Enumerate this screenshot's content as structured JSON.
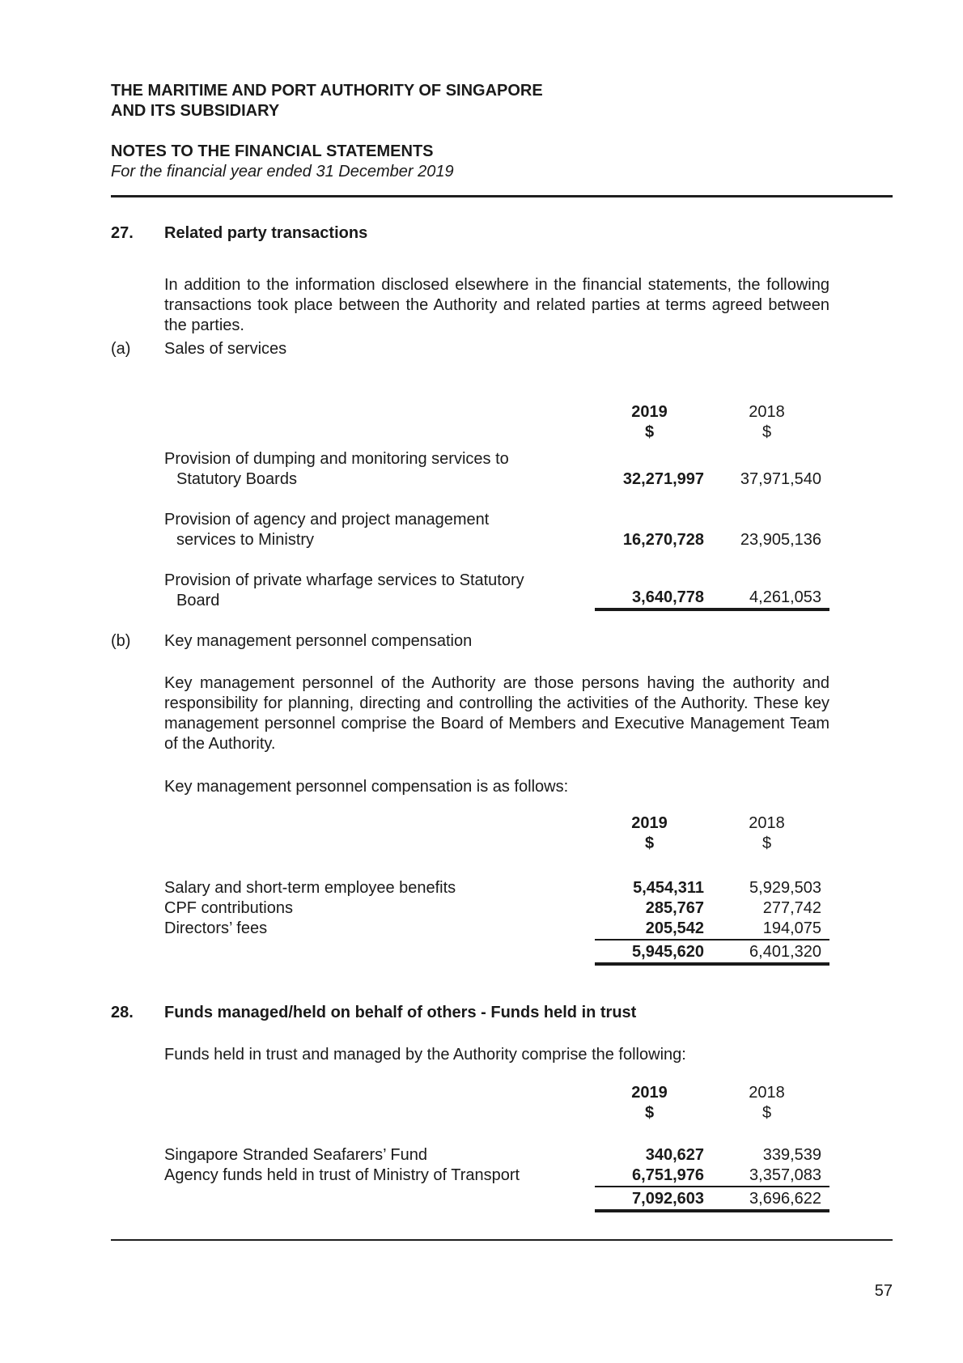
{
  "header": {
    "org_line1": "THE MARITIME AND PORT AUTHORITY OF SINGAPORE",
    "org_line2": "AND ITS SUBSIDIARY",
    "doc_title": "NOTES TO THE FINANCIAL STATEMENTS",
    "doc_period": "For the financial year ended 31 December 2019"
  },
  "sections": {
    "s27": {
      "number": "27.",
      "title": "Related party transactions",
      "intro_lines": [
        "In addition to the information disclosed elsewhere in the financial statements, the following",
        "transactions took place between the Authority and related parties at terms agreed between",
        "the parties."
      ],
      "a": {
        "label": "(a)",
        "title": "Sales of services",
        "table": {
          "year_2019": "2019",
          "year_2018": "2018",
          "unit_2019": "$",
          "unit_2018": "$",
          "rows": [
            {
              "label1": "Provision of dumping and monitoring services to",
              "label2": "Statutory Boards",
              "v2019": "32,271,997",
              "v2018": "37,971,540"
            },
            {
              "label1": "Provision of agency and project management",
              "label2": "services to Ministry",
              "v2019": "16,270,728",
              "v2018": "23,905,136"
            },
            {
              "label1": "Provision of private wharfage services to Statutory",
              "label2": "Board",
              "v2019": "3,640,778",
              "v2018": "4,261,053"
            }
          ]
        }
      },
      "b": {
        "label": "(b)",
        "title": "Key management personnel compensation",
        "body_lines": [
          "Key management personnel of the Authority are those persons having the authority and",
          "responsibility for planning, directing and controlling the activities of the Authority. These key",
          "management personnel comprise the Board of Members and Executive Management Team",
          "of the Authority."
        ],
        "lead": "Key management personnel compensation is as follows:",
        "table": {
          "year_2019": "2019",
          "year_2018": "2018",
          "unit_2019": "$",
          "unit_2018": "$",
          "rows": [
            {
              "label": "Salary and short-term employee benefits",
              "v2019": "5,454,311",
              "v2018": "5,929,503"
            },
            {
              "label": "CPF contributions",
              "v2019": "285,767",
              "v2018": "277,742"
            },
            {
              "label": "Directors’ fees",
              "v2019": "205,542",
              "v2018": "194,075"
            }
          ],
          "total": {
            "v2019": "5,945,620",
            "v2018": "6,401,320"
          }
        }
      }
    },
    "s28": {
      "number": "28.",
      "title": "Funds managed/held on behalf of others - Funds held in trust",
      "lead": "Funds held in trust and managed by the Authority comprise the following:",
      "table": {
        "year_2019": "2019",
        "year_2018": "2018",
        "unit_2019": "$",
        "unit_2018": "$",
        "rows": [
          {
            "label": "Singapore Stranded Seafarers’ Fund",
            "v2019": "340,627",
            "v2018": "339,539"
          },
          {
            "label": "Agency funds held in trust of Ministry of Transport",
            "v2019": "6,751,976",
            "v2018": "3,357,083"
          }
        ],
        "total": {
          "v2019": "7,092,603",
          "v2018": "3,696,622"
        }
      }
    }
  },
  "footer": {
    "page_number": "57"
  }
}
